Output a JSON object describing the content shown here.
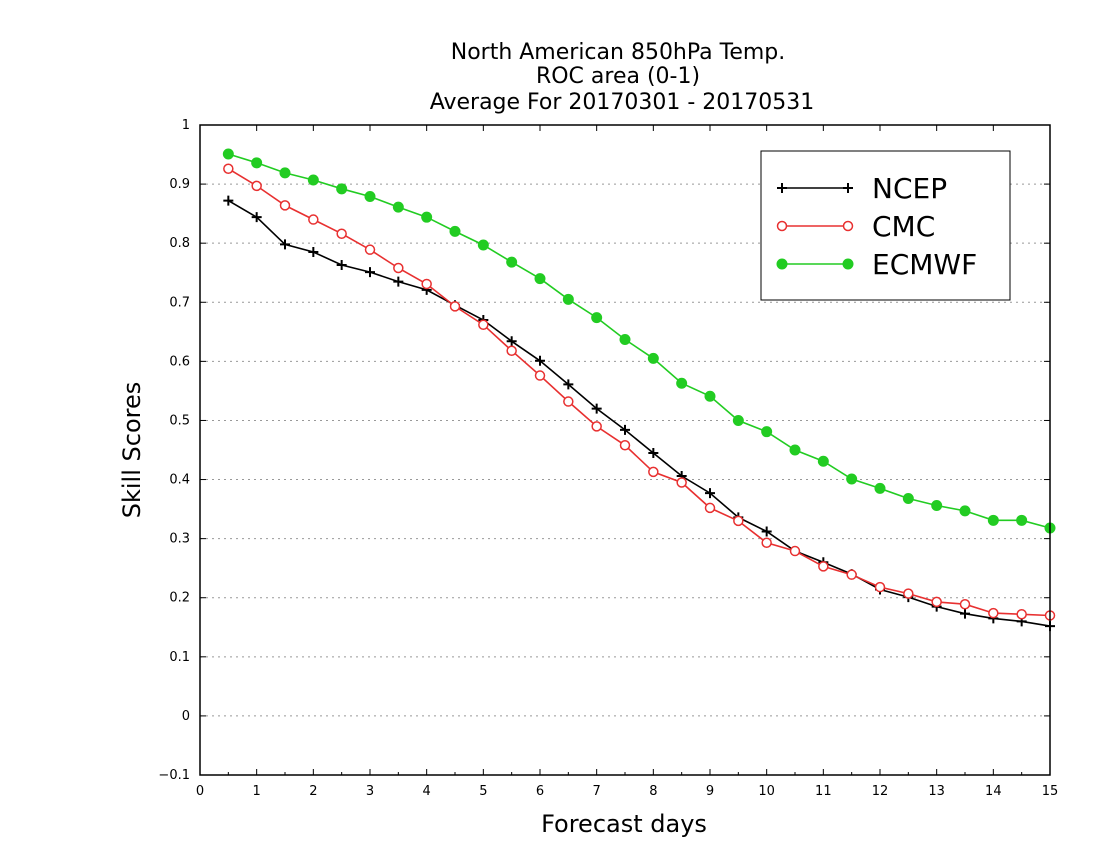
{
  "chart_data": {
    "type": "line",
    "title": [
      "North American 850hPa Temp.",
      "ROC area (0-1)",
      "Average For 20170301 - 20170531"
    ],
    "xlabel": "Forecast days",
    "ylabel": "Skill Scores",
    "xlim": [
      0,
      15
    ],
    "ylim": [
      -0.1,
      1
    ],
    "xticks": [
      "0",
      "1",
      "2",
      "3",
      "4",
      "5",
      "6",
      "7",
      "8",
      "9",
      "10",
      "11",
      "12",
      "13",
      "14",
      "15"
    ],
    "yticks": [
      "−0.1",
      "0",
      "0.1",
      "0.2",
      "0.3",
      "0.4",
      "0.5",
      "0.6",
      "0.7",
      "0.8",
      "0.9",
      "1"
    ],
    "grid": "horizontal dotted",
    "legend_position": "top-right",
    "x": [
      0.5,
      1,
      1.5,
      2,
      2.5,
      3,
      3.5,
      4,
      4.5,
      5,
      5.5,
      6,
      6.5,
      7,
      7.5,
      8,
      8.5,
      9,
      9.5,
      10,
      10.5,
      11,
      11.5,
      12,
      12.5,
      13,
      13.5,
      14,
      14.5,
      15
    ],
    "series": [
      {
        "name": "NCEP",
        "color": "#000000",
        "marker": "plus",
        "values": [
          0.872,
          0.844,
          0.798,
          0.785,
          0.763,
          0.751,
          0.735,
          0.721,
          0.695,
          0.67,
          0.634,
          0.601,
          0.561,
          0.52,
          0.484,
          0.445,
          0.406,
          0.377,
          0.336,
          0.312,
          0.279,
          0.26,
          0.24,
          0.214,
          0.201,
          0.185,
          0.173,
          0.165,
          0.16,
          0.152
        ]
      },
      {
        "name": "CMC",
        "color": "#e83030",
        "marker": "open-circle",
        "values": [
          0.926,
          0.897,
          0.864,
          0.84,
          0.816,
          0.789,
          0.758,
          0.731,
          0.693,
          0.662,
          0.618,
          0.576,
          0.532,
          0.49,
          0.458,
          0.413,
          0.395,
          0.352,
          0.33,
          0.293,
          0.279,
          0.253,
          0.239,
          0.218,
          0.207,
          0.193,
          0.189,
          0.174,
          0.172,
          0.17
        ]
      },
      {
        "name": "ECMWF",
        "color": "#22cc22",
        "marker": "filled-circle",
        "values": [
          0.951,
          0.936,
          0.919,
          0.907,
          0.892,
          0.879,
          0.861,
          0.844,
          0.82,
          0.797,
          0.768,
          0.74,
          0.705,
          0.674,
          0.637,
          0.605,
          0.563,
          0.541,
          0.5,
          0.481,
          0.45,
          0.431,
          0.401,
          0.385,
          0.368,
          0.356,
          0.347,
          0.331,
          0.331,
          0.318
        ]
      }
    ]
  }
}
